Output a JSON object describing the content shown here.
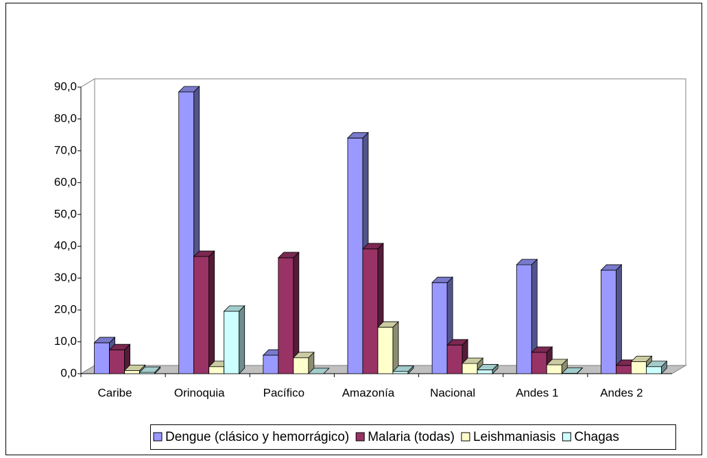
{
  "chart_data": {
    "type": "bar",
    "categories": [
      "Caribe",
      "Orinoquia",
      "Pacífico",
      "Amazonía",
      "Nacional",
      "Andes 1",
      "Andes 2"
    ],
    "series": [
      {
        "name": "Dengue (clásico y hemorrágico)",
        "color": "#9999ff",
        "values": [
          9.7,
          88.5,
          5.8,
          74.0,
          28.6,
          34.2,
          32.5
        ]
      },
      {
        "name": "Malaria (todas)",
        "color": "#993366",
        "values": [
          7.5,
          36.8,
          36.4,
          39.2,
          9.0,
          6.7,
          2.6
        ]
      },
      {
        "name": "Leishmaniasis",
        "color": "#ffffcc",
        "values": [
          1.0,
          2.2,
          5.0,
          14.6,
          3.2,
          2.8,
          3.8
        ]
      },
      {
        "name": "Chagas",
        "color": "#ccffff",
        "values": [
          0.4,
          19.6,
          0.0,
          0.7,
          1.2,
          0.1,
          2.2
        ]
      }
    ],
    "ylim": [
      0,
      90
    ],
    "yticks": [
      {
        "value": 0,
        "label": "0,0"
      },
      {
        "value": 10,
        "label": "10,0"
      },
      {
        "value": 20,
        "label": "20,0"
      },
      {
        "value": 30,
        "label": "30,0"
      },
      {
        "value": 40,
        "label": "40,0"
      },
      {
        "value": 50,
        "label": "50,0"
      },
      {
        "value": 60,
        "label": "60,0"
      },
      {
        "value": 70,
        "label": "70,0"
      },
      {
        "value": 80,
        "label": "80,0"
      },
      {
        "value": 90,
        "label": "90,0"
      }
    ],
    "legend": "bottom"
  }
}
